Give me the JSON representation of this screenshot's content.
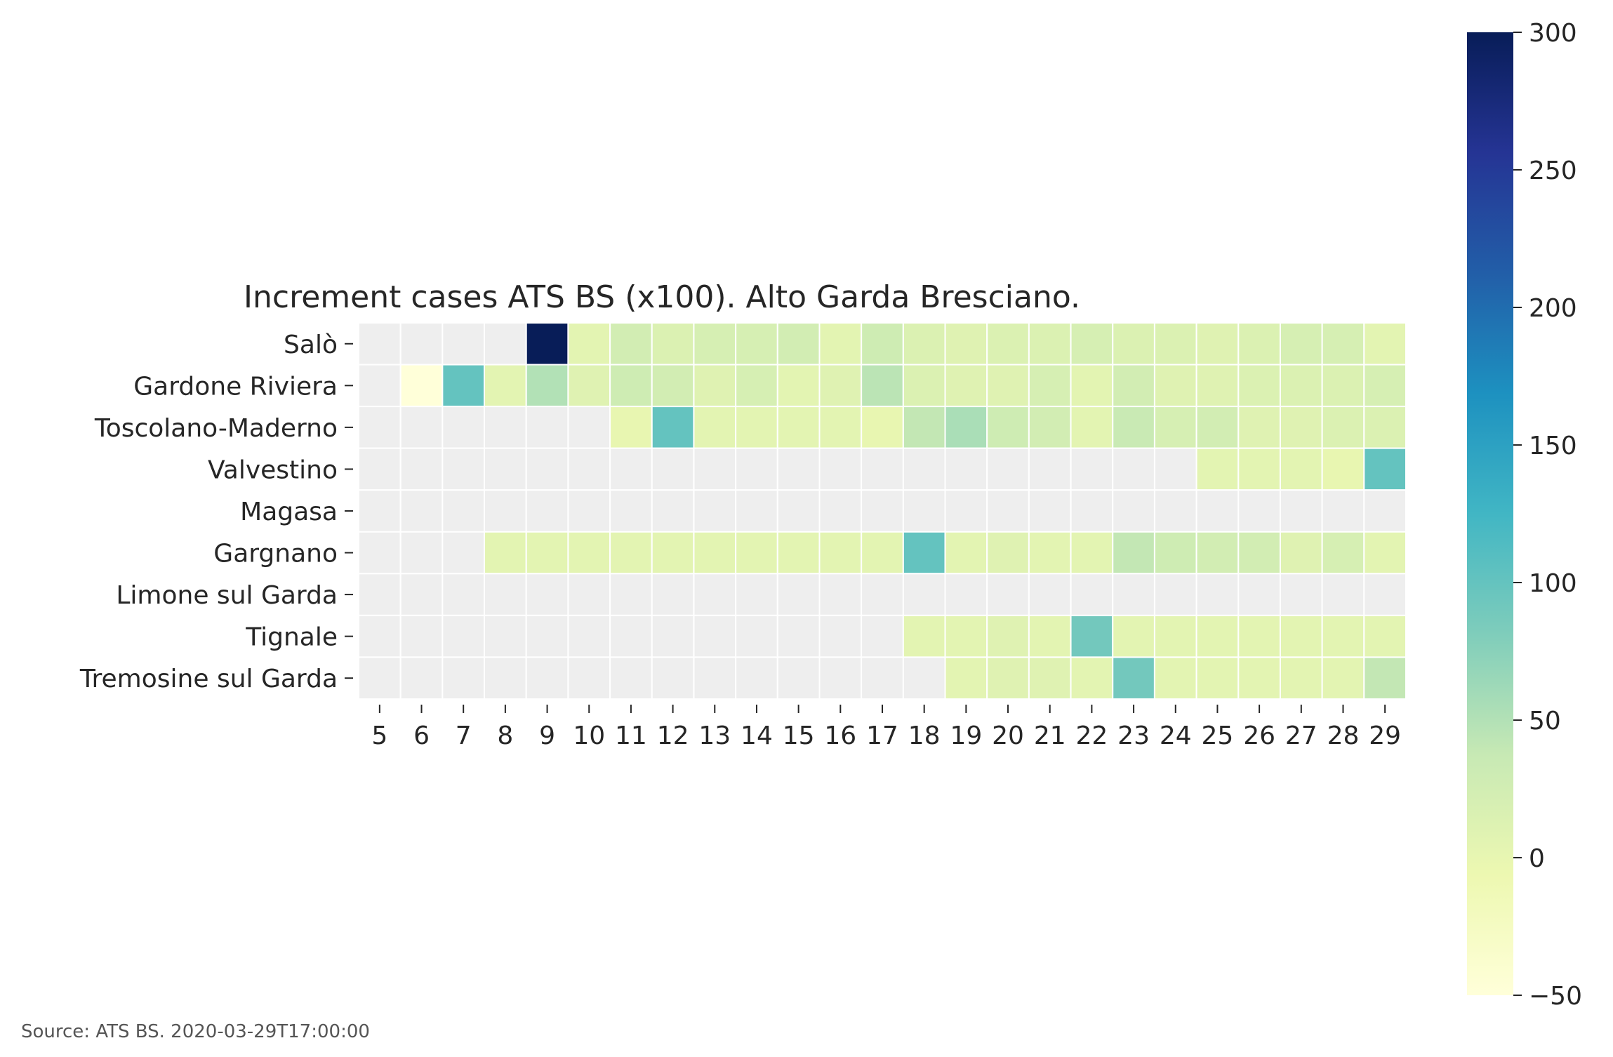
{
  "chart_data": {
    "type": "heatmap",
    "title": "Increment cases ATS BS (x100). Alto Garda Bresciano.",
    "source": "Source: ATS BS. 2020-03-29T17:00:00",
    "x": [
      5,
      6,
      7,
      8,
      9,
      10,
      11,
      12,
      13,
      14,
      15,
      16,
      17,
      18,
      19,
      20,
      21,
      22,
      23,
      24,
      25,
      26,
      27,
      28,
      29
    ],
    "rows": [
      "Salò",
      "Gardone Riviera",
      "Toscolano-Maderno",
      "Valvestino",
      "Magasa",
      "Gargnano",
      "Limone sul Garda",
      "Tignale",
      "Tremosine sul Garda"
    ],
    "values": [
      [
        null,
        null,
        null,
        null,
        300,
        5,
        25,
        15,
        20,
        20,
        25,
        5,
        30,
        15,
        10,
        15,
        15,
        20,
        15,
        15,
        10,
        15,
        20,
        20,
        5
      ],
      [
        null,
        -50,
        100,
        5,
        50,
        10,
        30,
        25,
        10,
        20,
        5,
        10,
        45,
        15,
        10,
        10,
        20,
        5,
        25,
        10,
        10,
        15,
        15,
        15,
        20
      ],
      [
        null,
        null,
        null,
        null,
        null,
        null,
        0,
        100,
        5,
        5,
        5,
        5,
        0,
        40,
        55,
        30,
        25,
        5,
        35,
        20,
        25,
        10,
        10,
        15,
        15
      ],
      [
        null,
        null,
        null,
        null,
        null,
        null,
        null,
        null,
        null,
        null,
        null,
        null,
        null,
        null,
        null,
        null,
        null,
        null,
        null,
        null,
        5,
        5,
        5,
        0,
        100
      ],
      [
        null,
        null,
        null,
        null,
        null,
        null,
        null,
        null,
        null,
        null,
        null,
        null,
        null,
        null,
        null,
        null,
        null,
        null,
        null,
        null,
        null,
        null,
        null,
        null,
        null
      ],
      [
        null,
        null,
        null,
        5,
        5,
        5,
        5,
        5,
        5,
        5,
        5,
        5,
        5,
        100,
        5,
        10,
        5,
        5,
        40,
        30,
        25,
        25,
        10,
        20,
        5
      ],
      [
        null,
        null,
        null,
        null,
        null,
        null,
        null,
        null,
        null,
        null,
        null,
        null,
        null,
        null,
        null,
        null,
        null,
        null,
        null,
        null,
        null,
        null,
        null,
        null,
        null
      ],
      [
        null,
        null,
        null,
        null,
        null,
        null,
        null,
        null,
        null,
        null,
        null,
        null,
        null,
        5,
        5,
        10,
        5,
        90,
        5,
        5,
        5,
        5,
        5,
        5,
        5
      ],
      [
        null,
        null,
        null,
        null,
        null,
        null,
        null,
        null,
        null,
        null,
        null,
        null,
        null,
        null,
        5,
        10,
        10,
        5,
        90,
        5,
        5,
        5,
        5,
        5,
        40
      ]
    ],
    "vmin": -50,
    "vmax": 300,
    "colorbar_ticks": [
      300,
      250,
      200,
      150,
      100,
      50,
      0,
      -50
    ],
    "colorbar_tick_labels": [
      "300",
      "250",
      "200",
      "150",
      "100",
      "50",
      "0",
      "−50"
    ],
    "colormap": [
      "#ffffd9",
      "#edf8b1",
      "#c7e9b4",
      "#7fcdbb",
      "#41b6c4",
      "#1d91c0",
      "#225ea8",
      "#253494",
      "#081d58"
    ],
    "missing_color": "#eeeeee",
    "gridline_color": "#ffffff"
  }
}
